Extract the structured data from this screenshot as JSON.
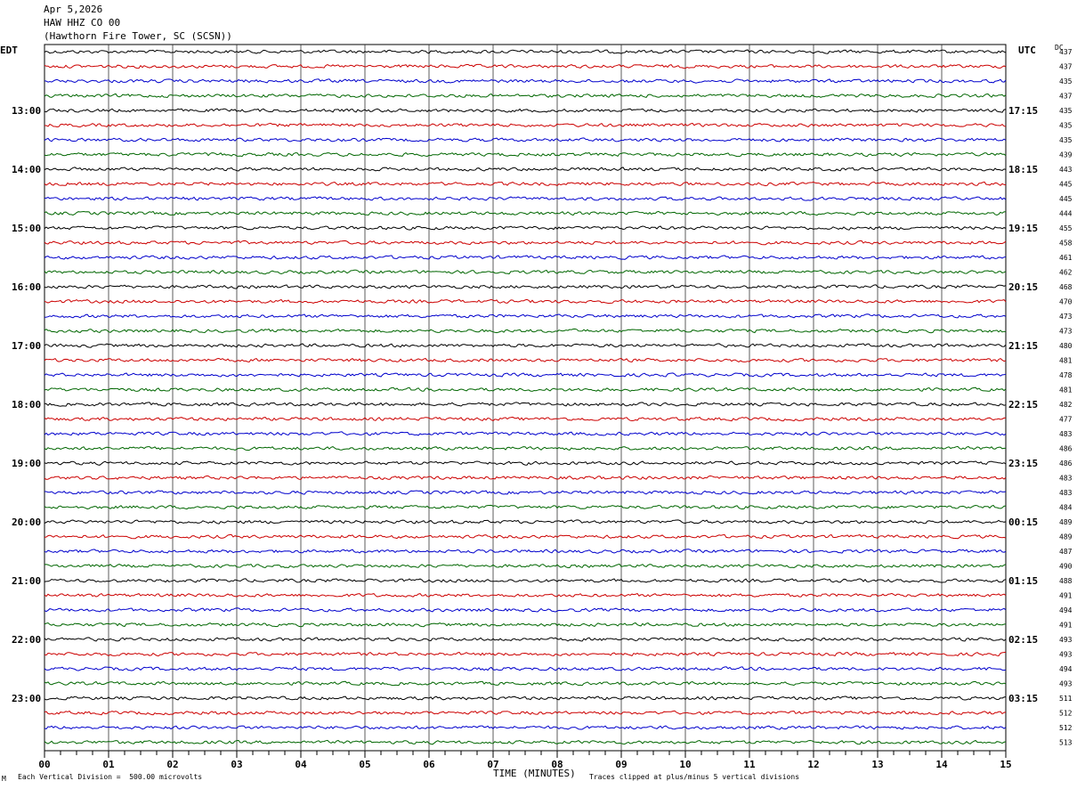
{
  "header": {
    "date": "Apr 5,2026",
    "channel": "HAW HHZ CO 00",
    "station": "(Hawthorn Fire Tower, SC (SCSN))"
  },
  "left_tz": "EDT",
  "right_tz": "UTC",
  "dc_label": "DC",
  "xlabel": "TIME (MINUTES)",
  "footer_left": "Each Vertical Division =  500.00 microvolts",
  "footer_right": "Traces clipped at plus/minus 5 vertical divisions",
  "corner_mark": "M",
  "colors": {
    "trace_cycle": [
      "#000000",
      "#cc0000",
      "#0000cc",
      "#006600"
    ],
    "grid": "#000000"
  },
  "chart_data": {
    "type": "line",
    "description_units": "seismogram helicorder, 15 minutes per trace line",
    "x_ticks": [
      "00",
      "01",
      "02",
      "03",
      "04",
      "05",
      "06",
      "07",
      "08",
      "09",
      "10",
      "11",
      "12",
      "13",
      "14",
      "15"
    ],
    "xlim": [
      0,
      15
    ],
    "left_hour_labels": [
      "13:00",
      "14:00",
      "15:00",
      "16:00",
      "17:00",
      "18:00",
      "19:00",
      "20:00",
      "21:00",
      "22:00",
      "23:00"
    ],
    "right_hour_labels": [
      "17:15",
      "18:15",
      "19:15",
      "20:15",
      "21:15",
      "22:15",
      "23:15",
      "00:15",
      "01:15",
      "02:15",
      "03:15"
    ],
    "first_hour_row": 4,
    "dc_offsets": [
      437,
      437,
      435,
      437,
      435,
      435,
      435,
      439,
      443,
      445,
      445,
      444,
      455,
      458,
      461,
      462,
      468,
      470,
      473,
      473,
      480,
      481,
      478,
      481,
      482,
      477,
      483,
      486,
      486,
      483,
      483,
      484,
      489,
      489,
      487,
      490,
      488,
      491,
      494,
      491,
      493,
      493,
      494,
      493,
      511,
      512,
      512,
      513
    ]
  }
}
